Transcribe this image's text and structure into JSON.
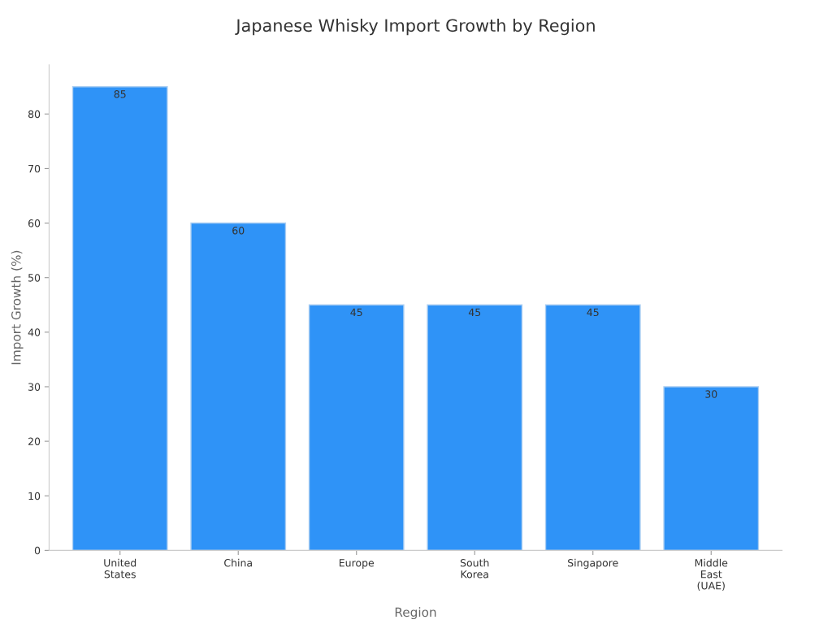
{
  "chart_data": {
    "type": "bar",
    "title": "Japanese Whisky Import Growth by Region",
    "xlabel": "Region",
    "ylabel": "Import Growth (%)",
    "categories": [
      "United\nStates",
      "China",
      "Europe",
      "South\nKorea",
      "Singapore",
      "Middle\nEast\n(UAE)"
    ],
    "values": [
      85,
      60,
      45,
      45,
      45,
      30
    ],
    "color": "#2f93f7",
    "ylim": [
      0,
      89
    ],
    "yticks": [
      0,
      10,
      20,
      30,
      40,
      50,
      60,
      70,
      80
    ],
    "data_labels": true,
    "grid": false,
    "legend": false
  }
}
